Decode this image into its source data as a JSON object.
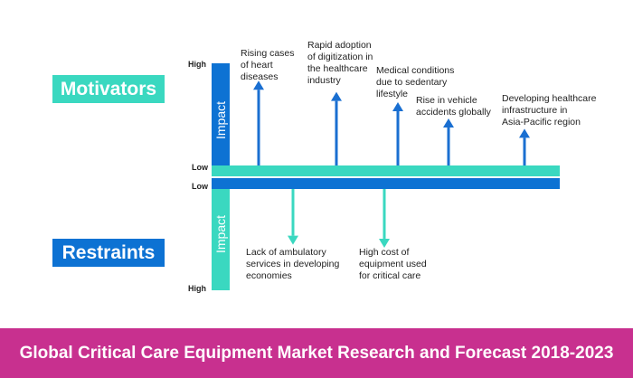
{
  "colors": {
    "teal": "#3ad8c0",
    "blue": "#0d72d3",
    "arrow_blue": "#1a6fd1",
    "arrow_teal": "#3ad8c0",
    "footer_bg": "#c8308f"
  },
  "motivators": {
    "label": "Motivators",
    "axis_high": "High",
    "axis_low": "Low",
    "impact_label": "Impact",
    "factors": [
      {
        "text": "Rising cases\nof heart\ndiseases",
        "impact": 0.83
      },
      {
        "text": "Rapid adoption\nof digitization in\nthe healthcare\nindustry",
        "impact": 0.72
      },
      {
        "text": "Medical conditions\ndue to sedentary\nlifestyle",
        "impact": 0.62
      },
      {
        "text": "Rise in vehicle\naccidents globally",
        "impact": 0.46
      },
      {
        "text": "Developing healthcare\ninfrastructure in\nAsia-Pacific region",
        "impact": 0.36
      }
    ]
  },
  "restraints": {
    "label": "Restraints",
    "axis_low": "Low",
    "axis_high": "High",
    "impact_label": "Impact",
    "factors": [
      {
        "text": "Lack of ambulatory\nservices in developing\neconomies",
        "impact": 0.55
      },
      {
        "text": "High cost of\nequipment used\nfor critical care",
        "impact": 0.58
      }
    ]
  },
  "footer": {
    "title": "Global Critical Care Equipment Market Research and Forecast 2018-2023"
  }
}
